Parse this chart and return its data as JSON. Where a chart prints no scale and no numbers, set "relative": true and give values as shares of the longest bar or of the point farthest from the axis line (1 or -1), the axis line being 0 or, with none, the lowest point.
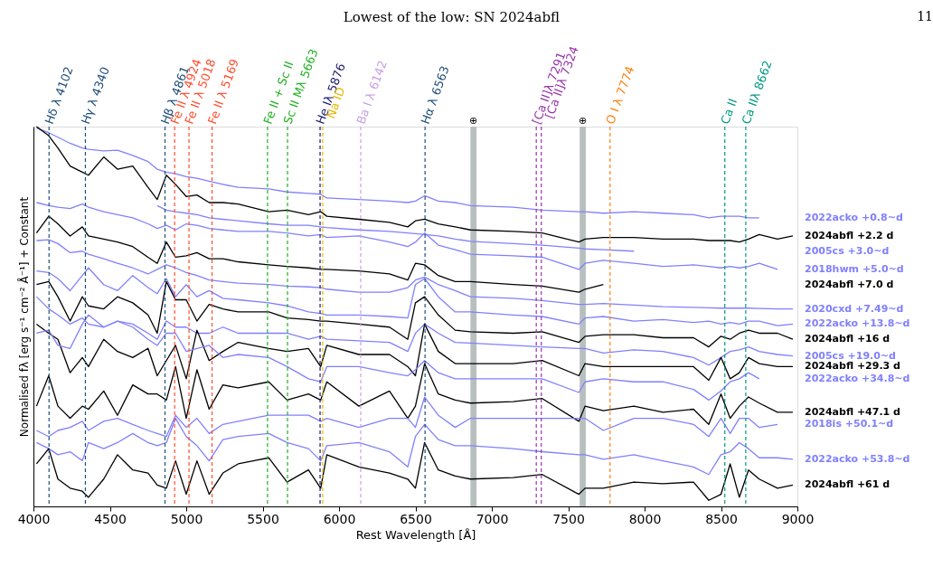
{
  "chart_data": {
    "type": "line",
    "title": "Lowest of the low: SN 2024abfl",
    "xlabel": "Rest Wavelength [Å]",
    "ylabel": "Normalised fλ [erg s⁻¹ cm⁻² Å⁻¹] + Constant",
    "annotations": [
      "11"
    ],
    "relative": true,
    "grid": false,
    "tick_labels": "x",
    "line_style": "solid",
    "marker": "none",
    "xlim": [
      4000,
      9000
    ],
    "xticks": [
      4000,
      4500,
      5000,
      5500,
      6000,
      6500,
      7000,
      7500,
      8000,
      8500,
      9000
    ],
    "x": [
      4020,
      4100,
      4160,
      4240,
      4320,
      4360,
      4460,
      4550,
      4650,
      4750,
      4810,
      4870,
      4930,
      5000,
      5070,
      5150,
      5240,
      5340,
      5540,
      5660,
      5800,
      5880,
      5920,
      6130,
      6330,
      6450,
      6500,
      6560,
      6650,
      6760,
      6860,
      7140,
      7330,
      7570,
      7610,
      7730,
      7930,
      8120,
      8320,
      8420,
      8500,
      8560,
      8620,
      8680,
      8750,
      8870,
      8970
    ],
    "series": [
      {
        "name": "2022acko +0.8~d",
        "color": "#8080ff",
        "values": [
          0.996,
          0.984,
          0.972,
          0.956,
          0.944,
          0.94,
          0.936,
          0.938,
          0.924,
          0.908,
          0.888,
          0.88,
          0.876,
          0.868,
          0.864,
          0.856,
          0.848,
          0.84,
          0.836,
          0.828,
          0.824,
          0.822,
          0.812,
          0.808,
          0.804,
          0.8,
          0.804,
          0.818,
          0.804,
          0.8,
          0.792,
          0.788,
          0.78,
          0.776,
          0.776,
          0.772,
          0.776,
          0.772,
          0.768,
          0.76,
          0.764,
          0.764,
          0.764,
          0.76,
          0.76,
          null,
          null
        ]
      },
      {
        "name": "2024abfl +2.2 d",
        "color": "#000000",
        "values": [
          1.0,
          0.976,
          0.944,
          0.896,
          0.88,
          0.872,
          0.92,
          0.888,
          0.896,
          0.84,
          0.808,
          0.872,
          0.848,
          0.816,
          0.82,
          0.8,
          0.8,
          0.796,
          0.776,
          0.78,
          0.768,
          0.776,
          0.764,
          0.756,
          0.748,
          0.736,
          0.752,
          0.756,
          0.744,
          0.736,
          0.728,
          0.724,
          0.72,
          0.696,
          0.704,
          0.708,
          0.708,
          0.704,
          0.704,
          0.7,
          0.7,
          0.7,
          0.696,
          0.704,
          0.716,
          0.704,
          0.712
        ]
      },
      {
        "name": "2005cs +3.0~d",
        "color": "#8080ff",
        "values": [
          null,
          null,
          null,
          null,
          null,
          null,
          null,
          null,
          null,
          null,
          0.792,
          0.78,
          0.776,
          0.772,
          0.768,
          0.76,
          0.756,
          0.752,
          0.744,
          0.74,
          0.74,
          0.736,
          0.734,
          0.728,
          0.724,
          0.72,
          0.718,
          0.716,
          0.712,
          0.704,
          0.698,
          0.692,
          0.688,
          0.68,
          0.678,
          0.676,
          0.672,
          null,
          null,
          null,
          null,
          null,
          null,
          null,
          null,
          null,
          null
        ]
      },
      {
        "name": "2018hwm +5.0~d",
        "color": "#8080ff",
        "values": [
          0.8,
          0.792,
          0.788,
          0.784,
          0.796,
          0.788,
          0.776,
          0.768,
          0.76,
          0.744,
          0.732,
          0.74,
          0.728,
          0.744,
          0.74,
          0.732,
          0.728,
          0.724,
          0.724,
          0.72,
          0.712,
          0.716,
          0.708,
          0.712,
          0.696,
          0.684,
          0.696,
          0.72,
          0.688,
          0.676,
          0.664,
          0.66,
          0.656,
          0.624,
          0.64,
          0.648,
          0.64,
          0.632,
          0.636,
          0.632,
          0.628,
          0.632,
          0.628,
          0.632,
          0.64,
          0.624,
          null
        ]
      },
      {
        "name": "2024abfl +7.0 d",
        "color": "#000000",
        "values": [
          0.72,
          0.764,
          0.744,
          0.712,
          0.736,
          0.712,
          0.704,
          0.696,
          0.684,
          0.656,
          0.64,
          0.696,
          0.656,
          0.66,
          0.668,
          0.652,
          0.652,
          0.644,
          0.636,
          0.632,
          0.628,
          0.624,
          0.624,
          0.62,
          0.612,
          0.596,
          0.64,
          0.636,
          0.608,
          0.592,
          0.592,
          0.584,
          0.58,
          0.564,
          0.572,
          0.584,
          null,
          null,
          null,
          null,
          null,
          null,
          null,
          null,
          null,
          null,
          null
        ]
      },
      {
        "name": "2020cxd +7.49~d",
        "color": "#8080ff",
        "values": [
          0.7,
          0.702,
          0.692,
          0.668,
          0.672,
          0.664,
          0.652,
          0.64,
          0.628,
          0.612,
          0.624,
          0.636,
          0.628,
          0.616,
          0.608,
          0.596,
          0.592,
          0.588,
          0.584,
          0.58,
          0.578,
          0.576,
          0.572,
          0.564,
          0.564,
          0.576,
          0.596,
          0.604,
          0.584,
          0.568,
          0.552,
          0.548,
          0.542,
          0.532,
          0.532,
          0.534,
          0.53,
          0.526,
          0.524,
          0.523,
          0.522,
          0.522,
          0.522,
          0.522,
          0.521,
          0.52,
          0.52
        ]
      },
      {
        "name": "2022acko +13.8~d",
        "color": "#8080ff",
        "values": [
          0.62,
          0.616,
          0.6,
          0.568,
          0.608,
          0.628,
          0.584,
          0.568,
          0.608,
          0.576,
          0.56,
          0.6,
          0.552,
          0.584,
          0.552,
          0.568,
          0.548,
          0.544,
          0.536,
          0.528,
          0.512,
          0.508,
          0.504,
          0.504,
          0.5,
          0.496,
          0.584,
          0.6,
          0.552,
          0.512,
          0.512,
          0.504,
          0.5,
          0.48,
          0.496,
          0.5,
          0.488,
          0.492,
          0.484,
          0.488,
          0.48,
          0.484,
          0.48,
          0.488,
          0.488,
          0.476,
          0.48
        ]
      },
      {
        "name": "2024abfl +16 d",
        "color": "#000000",
        "values": [
          0.584,
          0.592,
          0.552,
          0.488,
          0.552,
          0.528,
          0.52,
          0.552,
          0.536,
          0.504,
          0.456,
          0.592,
          0.544,
          0.544,
          0.488,
          0.532,
          0.52,
          0.512,
          0.512,
          0.496,
          0.492,
          0.488,
          0.488,
          0.48,
          0.472,
          0.44,
          0.536,
          0.552,
          0.504,
          0.464,
          0.46,
          0.456,
          0.46,
          0.432,
          0.448,
          0.452,
          0.452,
          0.444,
          0.444,
          0.42,
          0.448,
          0.44,
          0.456,
          0.464,
          0.456,
          0.456,
          0.44
        ]
      },
      {
        "name": "2005cs +19.0~d",
        "color": "#8080ff",
        "values": [
          0.552,
          0.52,
          0.504,
          0.48,
          0.496,
          0.48,
          0.472,
          0.488,
          0.48,
          0.456,
          0.44,
          0.488,
          0.472,
          0.472,
          0.456,
          0.456,
          0.472,
          0.456,
          0.456,
          0.456,
          0.44,
          0.448,
          0.44,
          0.436,
          0.432,
          0.408,
          0.456,
          0.48,
          0.456,
          0.432,
          0.43,
          0.424,
          0.42,
          0.416,
          0.416,
          0.404,
          0.412,
          0.408,
          0.392,
          0.372,
          0.392,
          0.408,
          0.412,
          0.42,
          0.408,
          0.4,
          0.396
        ]
      },
      {
        "name": "2024abfl +29.3 d",
        "color": "#000000",
        "values": [
          0.48,
          0.456,
          0.44,
          0.352,
          0.392,
          0.368,
          0.44,
          0.408,
          0.392,
          0.416,
          0.344,
          0.384,
          0.424,
          0.336,
          0.464,
          0.384,
          0.408,
          0.432,
          0.416,
          0.408,
          0.416,
          0.368,
          0.424,
          0.4,
          0.4,
          0.368,
          0.344,
          0.48,
          0.408,
          0.376,
          0.376,
          0.376,
          0.384,
          0.344,
          0.376,
          0.368,
          0.368,
          0.368,
          0.368,
          0.332,
          0.392,
          0.336,
          0.352,
          0.392,
          0.376,
          0.368,
          0.368
        ]
      },
      {
        "name": "2022acko +34.8~d",
        "color": "#8080ff",
        "values": [
          0.456,
          0.464,
          0.424,
          0.416,
          0.48,
          0.504,
          0.472,
          0.488,
          0.472,
          0.44,
          0.424,
          0.456,
          0.456,
          0.408,
          0.416,
          0.424,
          0.392,
          0.4,
          0.392,
          0.368,
          0.336,
          0.328,
          0.368,
          0.368,
          0.352,
          0.344,
          0.36,
          0.384,
          0.352,
          0.336,
          0.336,
          0.336,
          0.336,
          0.3,
          0.328,
          0.336,
          0.328,
          0.328,
          0.308,
          0.28,
          0.304,
          0.328,
          0.336,
          0.352,
          0.336,
          null,
          null
        ]
      },
      {
        "name": "2024abfl +47.1 d",
        "color": "#000000",
        "values": [
          0.264,
          0.344,
          0.264,
          0.232,
          0.264,
          0.256,
          0.304,
          0.24,
          0.32,
          0.296,
          0.296,
          0.28,
          0.368,
          0.232,
          0.36,
          0.256,
          0.32,
          0.312,
          0.328,
          0.28,
          0.296,
          0.28,
          0.328,
          0.264,
          0.304,
          0.232,
          0.264,
          0.376,
          0.296,
          0.28,
          0.272,
          0.276,
          0.284,
          0.224,
          0.264,
          0.252,
          0.264,
          0.248,
          0.256,
          0.216,
          0.296,
          0.232,
          0.264,
          0.288,
          0.272,
          0.248,
          0.248
        ]
      },
      {
        "name": "2018is +50.1~d",
        "color": "#8080ff",
        "values": [
          0.2,
          0.184,
          0.2,
          0.208,
          0.224,
          0.2,
          0.224,
          0.232,
          0.216,
          0.2,
          0.192,
          0.184,
          0.24,
          0.208,
          0.232,
          0.192,
          0.216,
          0.224,
          0.24,
          0.24,
          0.24,
          0.224,
          0.232,
          0.208,
          0.232,
          0.232,
          0.208,
          0.288,
          0.24,
          0.208,
          0.232,
          0.232,
          0.232,
          0.232,
          0.232,
          0.2,
          0.232,
          0.232,
          0.216,
          0.184,
          0.232,
          0.192,
          0.232,
          0.232,
          0.208,
          0.216,
          null
        ]
      },
      {
        "name": "2022acko +53.8~d",
        "color": "#8080ff",
        "values": [
          0.168,
          0.152,
          0.136,
          0.144,
          0.12,
          0.168,
          0.152,
          0.168,
          0.192,
          0.168,
          0.16,
          0.168,
          0.232,
          0.184,
          0.16,
          0.12,
          0.176,
          0.184,
          0.192,
          0.168,
          0.152,
          0.12,
          0.16,
          0.168,
          0.144,
          0.104,
          0.184,
          0.216,
          0.176,
          0.16,
          0.16,
          0.152,
          0.144,
          0.136,
          0.136,
          0.124,
          0.136,
          0.12,
          0.104,
          0.084,
          0.136,
          0.144,
          0.168,
          0.152,
          0.128,
          0.128,
          0.124
        ]
      },
      {
        "name": "2024abfl +61 d",
        "color": "#000000",
        "values": [
          0.112,
          0.152,
          0.072,
          0.048,
          0.04,
          0.024,
          0.072,
          0.136,
          0.096,
          0.088,
          0.056,
          0.048,
          0.12,
          0.032,
          0.12,
          0.032,
          0.088,
          0.112,
          0.128,
          0.064,
          0.096,
          0.048,
          0.136,
          0.104,
          0.088,
          0.072,
          0.048,
          0.168,
          0.096,
          0.08,
          0.072,
          0.076,
          0.084,
          0.032,
          0.048,
          0.048,
          0.064,
          0.06,
          0.064,
          0.016,
          0.032,
          0.112,
          0.024,
          0.096,
          0.072,
          0.048,
          0.056
        ]
      }
    ],
    "ref_lines": [
      {
        "axis": "x",
        "value": 4102,
        "label": "Hδ λ 4102",
        "color": "#1f4e79",
        "line_style": "dashed"
      },
      {
        "axis": "x",
        "value": 4340,
        "label": "Hγ λ 4340",
        "color": "#1f4e79",
        "line_style": "dashed"
      },
      {
        "axis": "x",
        "value": 4861,
        "label": "Hβ λ 4861",
        "color": "#1f4e79",
        "line_style": "dashed"
      },
      {
        "axis": "x",
        "value": 4924,
        "label": "Fe II λ 4924",
        "color": "#ff4d2e",
        "line_style": "dashed"
      },
      {
        "axis": "x",
        "value": 5018,
        "label": "Fe II λ 5018",
        "color": "#ff4d2e",
        "line_style": "dashed"
      },
      {
        "axis": "x",
        "value": 5169,
        "label": "Fe II λ 5169",
        "color": "#ff4d2e",
        "line_style": "dashed"
      },
      {
        "axis": "x",
        "value": 5532,
        "label": "Fe II  + Sc II",
        "color": "#22b022",
        "line_style": "dashed"
      },
      {
        "axis": "x",
        "value": 5663,
        "label": "Sc II Mλ 5663",
        "color": "#22b022",
        "line_style": "dashed"
      },
      {
        "axis": "x",
        "value": 5876,
        "label": "He Iλ 5876",
        "color": "#1a1a6e",
        "line_style": "dashed"
      },
      {
        "axis": "x",
        "value": 5893,
        "label": "Na ID",
        "color": "#e6b800",
        "line_style": "dashed"
      },
      {
        "axis": "x",
        "value": 6142,
        "label": "Ba I λ 6142",
        "color": "#c8a0e8",
        "line_style": "dashed"
      },
      {
        "axis": "x",
        "value": 6563,
        "label": "Hα λ 6563",
        "color": "#1f4e79",
        "line_style": "dashed"
      },
      {
        "axis": "x",
        "value": 7291,
        "label": "[Ca II]λ 7291",
        "color": "#9933aa",
        "line_style": "dashed"
      },
      {
        "axis": "x",
        "value": 7324,
        "label": "[Ca II]λ 7324",
        "color": "#9933aa",
        "line_style": "dashed"
      },
      {
        "axis": "x",
        "value": 7774,
        "label": "O I λ 7774",
        "color": "#ff7f0e",
        "line_style": "dashed"
      },
      {
        "axis": "x",
        "value": 8525,
        "label": "Ca II",
        "color": "#009980",
        "line_style": "dashed"
      },
      {
        "axis": "x",
        "value": 8662,
        "label": "Ca IIλ 8662",
        "color": "#009980",
        "line_style": "dashed"
      }
    ],
    "bands": [
      {
        "axis": "x",
        "from": 6860,
        "to": 6900,
        "label": "⊕",
        "color": "#b8bfbf"
      },
      {
        "axis": "x",
        "from": 7575,
        "to": 7615,
        "label": "⊕",
        "color": "#b8bfbf"
      }
    ]
  }
}
